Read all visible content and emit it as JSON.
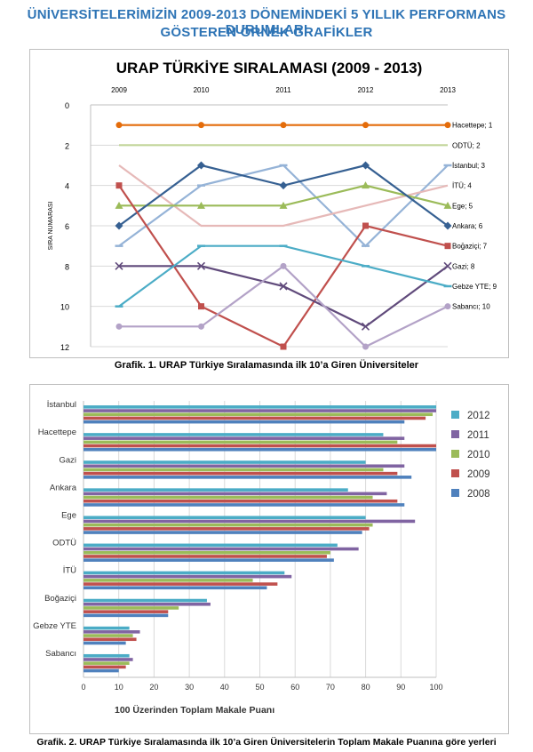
{
  "page": {
    "title_line1": "ÜNİVERSİTELERİMİZİN 2009-2013 DÖNEMİNDEKİ 5 YILLIK PERFORMANS DURUMLARI",
    "title_line2": "GÖSTEREN ÖRNEK GRAFİKLER",
    "caption1": "Grafik. 1. URAP Türkiye Sıralamasında ilk 10’a Giren Üniversiteler",
    "caption2": "Grafik. 2. URAP Türkiye Sıralamasında ilk 10’a Giren Üniversitelerin Toplam Makale Puanına göre yerleri"
  },
  "chart_data": [
    {
      "type": "line",
      "title": "URAP TÜRKİYE SIRALAMASI (2009 - 2013)",
      "xlabel": "",
      "ylabel": "SIRA NUMARASI",
      "x": [
        "2009",
        "2010",
        "2011",
        "2012",
        "2013"
      ],
      "ylim": [
        0,
        12
      ],
      "y_reversed": true,
      "yticks": [
        0,
        2,
        4,
        6,
        8,
        10,
        12
      ],
      "grid": "horizontal",
      "series": [
        {
          "name": "Hacettepe",
          "end_label": "Hacettepe; 1",
          "values": [
            1,
            1,
            1,
            1,
            1
          ],
          "color": "#e46c0a",
          "marker": "circle"
        },
        {
          "name": "ODTÜ",
          "end_label": "ODTÜ; 2",
          "values": [
            2,
            2,
            2,
            2,
            2
          ],
          "color": "#c3d69b",
          "marker": "none"
        },
        {
          "name": "İstanbul",
          "end_label": "İstanbul; 3",
          "values": [
            7,
            4,
            3,
            7,
            3
          ],
          "color": "#95b3d7",
          "marker": "dash"
        },
        {
          "name": "İTÜ",
          "end_label": "İTÜ; 4",
          "values": [
            3,
            6,
            6,
            5,
            4
          ],
          "color": "#e6b9b8",
          "marker": "none"
        },
        {
          "name": "Ege",
          "end_label": "Ege; 5",
          "values": [
            5,
            5,
            5,
            4,
            5
          ],
          "color": "#9bbb59",
          "marker": "triangle"
        },
        {
          "name": "Ankara",
          "end_label": "Ankara; 6",
          "values": [
            6,
            3,
            4,
            3,
            6
          ],
          "color": "#366092",
          "marker": "diamond"
        },
        {
          "name": "Boğaziçi",
          "end_label": "Boğaziçi; 7",
          "values": [
            4,
            10,
            12,
            6,
            7
          ],
          "color": "#c0504d",
          "marker": "square"
        },
        {
          "name": "Gazi",
          "end_label": "Gazi; 8",
          "values": [
            8,
            8,
            9,
            11,
            8
          ],
          "color": "#604a7b",
          "marker": "x"
        },
        {
          "name": "Gebze YTE",
          "end_label": "Gebze YTE; 9",
          "values": [
            10,
            7,
            7,
            8,
            9
          ],
          "color": "#4bacc6",
          "marker": "dash"
        },
        {
          "name": "Sabancı",
          "end_label": "Sabancı; 10",
          "values": [
            11,
            11,
            8,
            12,
            10
          ],
          "color": "#b3a2c7",
          "marker": "circle"
        }
      ]
    },
    {
      "type": "bar",
      "orientation": "horizontal",
      "title": "",
      "xlabel": "100 Üzerinden Toplam Makale Puanı",
      "ylabel": "",
      "xlim": [
        0,
        100
      ],
      "xticks": [
        0,
        10,
        20,
        30,
        40,
        50,
        60,
        70,
        80,
        90,
        100
      ],
      "grid": "vertical",
      "legend_position": "right",
      "categories": [
        "İstanbul",
        "Hacettepe",
        "Gazi",
        "Ankara",
        "Ege",
        "ODTÜ",
        "İTÜ",
        "Boğaziçi",
        "Gebze YTE",
        "Sabancı"
      ],
      "series": [
        {
          "name": "2012",
          "color": "#4bacc6",
          "values": [
            100,
            85,
            80,
            75,
            80,
            72,
            57,
            35,
            13,
            13
          ]
        },
        {
          "name": "2011",
          "color": "#8064a2",
          "values": [
            100,
            91,
            91,
            86,
            94,
            78,
            59,
            36,
            16,
            14
          ]
        },
        {
          "name": "2010",
          "color": "#9bbb59",
          "values": [
            99,
            89,
            85,
            82,
            82,
            70,
            48,
            27,
            14,
            13
          ]
        },
        {
          "name": "2009",
          "color": "#c0504d",
          "values": [
            97,
            100,
            89,
            89,
            81,
            69,
            55,
            24,
            15,
            12
          ]
        },
        {
          "name": "2008",
          "color": "#4f81bd",
          "values": [
            91,
            100,
            93,
            91,
            79,
            71,
            52,
            24,
            12,
            10
          ]
        }
      ]
    }
  ]
}
